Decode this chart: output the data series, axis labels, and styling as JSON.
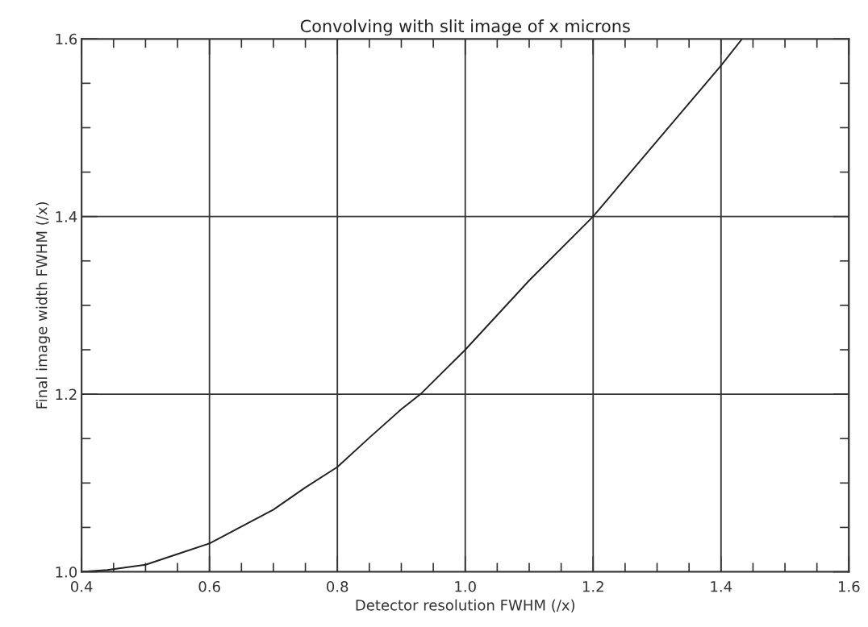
{
  "chart_data": {
    "type": "line",
    "title": "Convolving with slit image of x microns",
    "xlabel": "Detector resolution FWHM (/x)",
    "ylabel": "Final image width FWHM (/x)",
    "x": [
      0.4,
      0.44,
      0.5,
      0.55,
      0.6,
      0.65,
      0.7,
      0.75,
      0.8,
      0.85,
      0.9,
      0.93,
      1.0,
      1.1,
      1.2,
      1.3,
      1.4,
      1.433
    ],
    "series": [
      {
        "color": "#222222",
        "values": [
          1.0,
          1.002,
          1.008,
          1.02,
          1.032,
          1.051,
          1.07,
          1.095,
          1.118,
          1.151,
          1.183,
          1.2,
          1.25,
          1.328,
          1.4,
          1.485,
          1.57,
          1.6
        ]
      }
    ],
    "xlim": [
      0.4,
      1.6
    ],
    "ylim": [
      1.0,
      1.6
    ],
    "xticks": [
      0.4,
      0.6,
      0.8,
      {
        "value": 1,
        "label": "1.0"
      },
      1.2,
      1.4,
      1.6
    ],
    "yticks": [
      {
        "value": 1,
        "label": "1.0"
      },
      1.2,
      1.4,
      1.6
    ],
    "grid": true,
    "marker": "none",
    "line_style": "solid"
  }
}
